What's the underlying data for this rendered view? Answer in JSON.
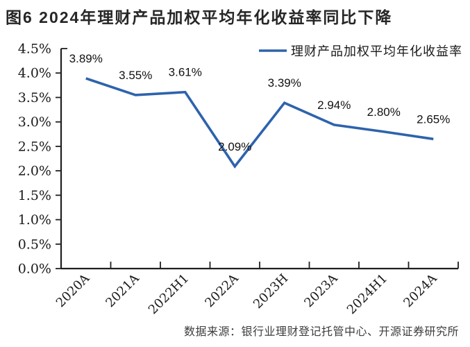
{
  "title": "图6  2024年理财产品加权平均年化收益率同比下降",
  "source": "数据来源：银行业理财登记托管中心、开源证券研究所",
  "legend": {
    "label": "理财产品加权平均年化收益率"
  },
  "colors": {
    "line": "#2E63AC",
    "axis": "#1F1F1F",
    "title_text": "#262626",
    "label_text": "#111111",
    "tick_text": "#1A1A1A",
    "source_text": "#3D3D3D"
  },
  "chart_data": {
    "type": "line",
    "title": "图6  2024年理财产品加权平均年化收益率同比下降",
    "categories": [
      "2020A",
      "2021A",
      "2022H1",
      "2022A",
      "2023H",
      "2023A",
      "2024H1",
      "2024A"
    ],
    "series": [
      {
        "name": "理财产品加权平均年化收益率",
        "values": [
          3.89,
          3.55,
          3.61,
          2.09,
          3.39,
          2.94,
          2.8,
          2.65
        ]
      }
    ],
    "data_labels": [
      "3.89%",
      "3.55%",
      "3.61%",
      "2.09%",
      "3.39%",
      "2.94%",
      "2.80%",
      "2.65%"
    ],
    "ytick_labels": [
      "4.5%",
      "4.0%",
      "3.5%",
      "3.0%",
      "2.5%",
      "2.0%",
      "1.5%",
      "1.0%",
      "0.5%",
      "0.0%"
    ],
    "ylim": [
      0,
      4.5
    ],
    "ytick_step": 0.5,
    "xlabel": "",
    "ylabel": "",
    "grid": false,
    "legend_position": "top-right"
  }
}
